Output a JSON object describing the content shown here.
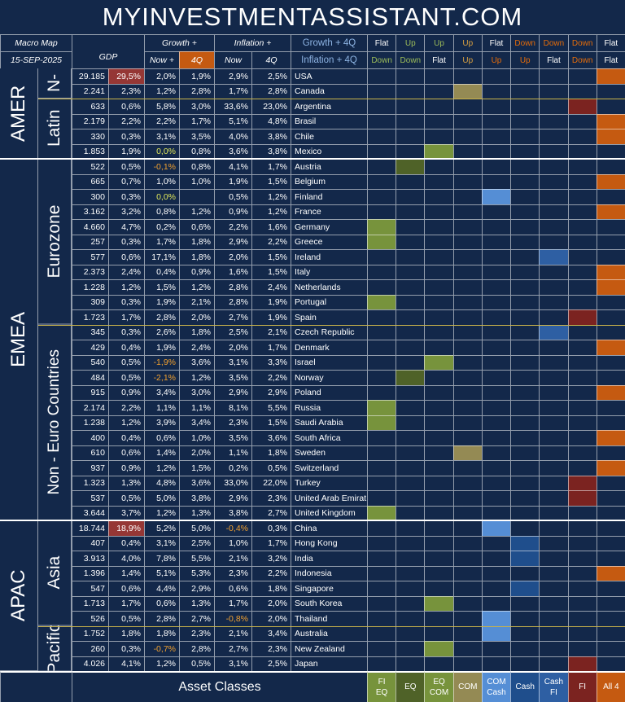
{
  "header": {
    "title": "MYINVESTMENTASSISTANT.COM",
    "macro_map": "Macro Map",
    "date": "15-SEP-2025",
    "gdp": "GDP",
    "growth": "Growth +",
    "growth_now": "Now +",
    "growth_4q": "4Q",
    "inflation": "Inflation +",
    "inflation_now": "Now",
    "inflation_4q": "4Q",
    "country_top": "Growth + 4Q",
    "country_bottom": "Inflation + 4Q"
  },
  "signals": [
    {
      "top": "Flat",
      "bottom": "Down",
      "top_color": "#ffffff",
      "bottom_color": "#9bbb59"
    },
    {
      "top": "Up",
      "bottom": "Down",
      "top_color": "#9bbb59",
      "bottom_color": "#9bbb59"
    },
    {
      "top": "Up",
      "bottom": "Flat",
      "top_color": "#9bbb59",
      "bottom_color": "#ffffff"
    },
    {
      "top": "Up",
      "bottom": "Up",
      "top_color": "#d8a040",
      "bottom_color": "#d8a040"
    },
    {
      "top": "Flat",
      "bottom": "Up",
      "top_color": "#ffffff",
      "bottom_color": "#e46c0a"
    },
    {
      "top": "Down",
      "bottom": "Up",
      "top_color": "#e46c0a",
      "bottom_color": "#e46c0a"
    },
    {
      "top": "Down",
      "bottom": "Flat",
      "top_color": "#e46c0a",
      "bottom_color": "#ffffff"
    },
    {
      "top": "Down",
      "bottom": "Down",
      "top_color": "#e46c0a",
      "bottom_color": "#e46c0a"
    },
    {
      "top": "Flat",
      "bottom": "Flat",
      "top_color": "#ffffff",
      "bottom_color": "#ffffff"
    }
  ],
  "footer": {
    "label": "Asset Classes",
    "classes": [
      {
        "lines": [
          "FI",
          "EQ"
        ],
        "color": "#77933c"
      },
      {
        "lines": [
          "EQ"
        ],
        "color": "#4f6228"
      },
      {
        "lines": [
          "EQ",
          "COM"
        ],
        "color": "#77933c"
      },
      {
        "lines": [
          "COM"
        ],
        "color": "#948a54"
      },
      {
        "lines": [
          "COM",
          "Cash"
        ],
        "color": "#558ed5"
      },
      {
        "lines": [
          "Cash"
        ],
        "color": "#1f4e8c"
      },
      {
        "lines": [
          "Cash",
          "FI"
        ],
        "color": "#2e5fa3"
      },
      {
        "lines": [
          "FI"
        ],
        "color": "#7b2320"
      },
      {
        "lines": [
          "All 4"
        ],
        "color": "#c55a11"
      }
    ]
  },
  "regions": [
    {
      "name": "AMER",
      "subregions": [
        {
          "name": "N-",
          "rows": [
            {
              "gdp": "29.185",
              "share": "29,5%",
              "growth_now": "2,0%",
              "growth_4q": "1,9%",
              "infl_now": "2,9%",
              "infl_4q": "2,5%",
              "country": "USA",
              "signal": 8
            },
            {
              "gdp": "2.241",
              "share": "2,3%",
              "growth_now": "1,2%",
              "growth_4q": "2,8%",
              "infl_now": "1,7%",
              "infl_4q": "2,8%",
              "country": "Canada",
              "signal": 3
            }
          ]
        },
        {
          "name": "Latin",
          "rows": [
            {
              "gdp": "633",
              "share": "0,6%",
              "growth_now": "5,8%",
              "growth_4q": "3,0%",
              "infl_now": "33,6%",
              "infl_4q": "23,0%",
              "country": "Argentina",
              "signal": 7
            },
            {
              "gdp": "2.179",
              "share": "2,2%",
              "growth_now": "2,2%",
              "growth_4q": "1,7%",
              "infl_now": "5,1%",
              "infl_4q": "4,8%",
              "country": "Brasil",
              "signal": 8
            },
            {
              "gdp": "330",
              "share": "0,3%",
              "growth_now": "3,1%",
              "growth_4q": "3,5%",
              "infl_now": "4,0%",
              "infl_4q": "3,8%",
              "country": "Chile",
              "signal": 8
            },
            {
              "gdp": "1.853",
              "share": "1,9%",
              "growth_now": "0,0%",
              "growth_4q": "0,8%",
              "infl_now": "3,6%",
              "infl_4q": "3,8%",
              "country": "Mexico",
              "signal": 2
            }
          ]
        }
      ]
    },
    {
      "name": "EMEA",
      "subregions": [
        {
          "name": "Eurozone",
          "rows": [
            {
              "gdp": "522",
              "share": "0,5%",
              "growth_now": "-0,1%",
              "growth_4q": "0,8%",
              "infl_now": "4,1%",
              "infl_4q": "1,7%",
              "country": "Austria",
              "signal": 1
            },
            {
              "gdp": "665",
              "share": "0,7%",
              "growth_now": "1,0%",
              "growth_4q": "1,0%",
              "infl_now": "1,9%",
              "infl_4q": "1,5%",
              "country": "Belgium",
              "signal": 8
            },
            {
              "gdp": "300",
              "share": "0,3%",
              "growth_now": "0,0%",
              "growth_4q": null,
              "infl_now": "0,5%",
              "infl_4q": "1,2%",
              "country": "Finland",
              "signal": 4
            },
            {
              "gdp": "3.162",
              "share": "3,2%",
              "growth_now": "0,8%",
              "growth_4q": "1,2%",
              "infl_now": "0,9%",
              "infl_4q": "1,2%",
              "country": "France",
              "signal": 8
            },
            {
              "gdp": "4.660",
              "share": "4,7%",
              "growth_now": "0,2%",
              "growth_4q": "0,6%",
              "infl_now": "2,2%",
              "infl_4q": "1,6%",
              "country": "Germany",
              "signal": 0
            },
            {
              "gdp": "257",
              "share": "0,3%",
              "growth_now": "1,7%",
              "growth_4q": "1,8%",
              "infl_now": "2,9%",
              "infl_4q": "2,2%",
              "country": "Greece",
              "signal": 0
            },
            {
              "gdp": "577",
              "share": "0,6%",
              "growth_now": "17,1%",
              "growth_4q": "1,8%",
              "infl_now": "2,0%",
              "infl_4q": "1,5%",
              "country": "Ireland",
              "signal": 6
            },
            {
              "gdp": "2.373",
              "share": "2,4%",
              "growth_now": "0,4%",
              "growth_4q": "0,9%",
              "infl_now": "1,6%",
              "infl_4q": "1,5%",
              "country": "Italy",
              "signal": 8
            },
            {
              "gdp": "1.228",
              "share": "1,2%",
              "growth_now": "1,5%",
              "growth_4q": "1,2%",
              "infl_now": "2,8%",
              "infl_4q": "2,4%",
              "country": "Netherlands",
              "signal": 8
            },
            {
              "gdp": "309",
              "share": "0,3%",
              "growth_now": "1,9%",
              "growth_4q": "2,1%",
              "infl_now": "2,8%",
              "infl_4q": "1,9%",
              "country": "Portugal",
              "signal": 0
            },
            {
              "gdp": "1.723",
              "share": "1,7%",
              "growth_now": "2,8%",
              "growth_4q": "2,0%",
              "infl_now": "2,7%",
              "infl_4q": "1,9%",
              "country": "Spain",
              "signal": 7
            }
          ]
        },
        {
          "name": "Non - Euro Countries",
          "rows": [
            {
              "gdp": "345",
              "share": "0,3%",
              "growth_now": "2,6%",
              "growth_4q": "1,8%",
              "infl_now": "2,5%",
              "infl_4q": "2,1%",
              "country": "Czech Republic",
              "signal": 6
            },
            {
              "gdp": "429",
              "share": "0,4%",
              "growth_now": "1,9%",
              "growth_4q": "2,4%",
              "infl_now": "2,0%",
              "infl_4q": "1,7%",
              "country": "Denmark",
              "signal": 8
            },
            {
              "gdp": "540",
              "share": "0,5%",
              "growth_now": "-1,9%",
              "growth_4q": "3,6%",
              "infl_now": "3,1%",
              "infl_4q": "3,3%",
              "country": "Israel",
              "signal": 2
            },
            {
              "gdp": "484",
              "share": "0,5%",
              "growth_now": "-2,1%",
              "growth_4q": "1,2%",
              "infl_now": "3,5%",
              "infl_4q": "2,2%",
              "country": "Norway",
              "signal": 1
            },
            {
              "gdp": "915",
              "share": "0,9%",
              "growth_now": "3,4%",
              "growth_4q": "3,0%",
              "infl_now": "2,9%",
              "infl_4q": "2,9%",
              "country": "Poland",
              "signal": 8
            },
            {
              "gdp": "2.174",
              "share": "2,2%",
              "growth_now": "1,1%",
              "growth_4q": "1,1%",
              "infl_now": "8,1%",
              "infl_4q": "5,5%",
              "country": "Russia",
              "signal": 0
            },
            {
              "gdp": "1.238",
              "share": "1,2%",
              "growth_now": "3,9%",
              "growth_4q": "3,4%",
              "infl_now": "2,3%",
              "infl_4q": "1,5%",
              "country": "Saudi Arabia",
              "signal": 0
            },
            {
              "gdp": "400",
              "share": "0,4%",
              "growth_now": "0,6%",
              "growth_4q": "1,0%",
              "infl_now": "3,5%",
              "infl_4q": "3,6%",
              "country": "South Africa",
              "signal": 8
            },
            {
              "gdp": "610",
              "share": "0,6%",
              "growth_now": "1,4%",
              "growth_4q": "2,0%",
              "infl_now": "1,1%",
              "infl_4q": "1,8%",
              "country": "Sweden",
              "signal": 3
            },
            {
              "gdp": "937",
              "share": "0,9%",
              "growth_now": "1,2%",
              "growth_4q": "1,5%",
              "infl_now": "0,2%",
              "infl_4q": "0,5%",
              "country": "Switzerland",
              "signal": 8
            },
            {
              "gdp": "1.323",
              "share": "1,3%",
              "growth_now": "4,8%",
              "growth_4q": "3,6%",
              "infl_now": "33,0%",
              "infl_4q": "22,0%",
              "country": "Turkey",
              "signal": 7
            },
            {
              "gdp": "537",
              "share": "0,5%",
              "growth_now": "5,0%",
              "growth_4q": "3,8%",
              "infl_now": "2,9%",
              "infl_4q": "2,3%",
              "country": "United Arab Emirat",
              "signal": 7
            },
            {
              "gdp": "3.644",
              "share": "3,7%",
              "growth_now": "1,2%",
              "growth_4q": "1,3%",
              "infl_now": "3,8%",
              "infl_4q": "2,7%",
              "country": "United Kingdom",
              "signal": 0
            }
          ]
        }
      ]
    },
    {
      "name": "APAC",
      "subregions": [
        {
          "name": "Asia",
          "rows": [
            {
              "gdp": "18.744",
              "share": "18,9%",
              "growth_now": "5,2%",
              "growth_4q": "5,0%",
              "infl_now": "-0,4%",
              "infl_4q": "0,3%",
              "country": "China",
              "signal": 4
            },
            {
              "gdp": "407",
              "share": "0,4%",
              "growth_now": "3,1%",
              "growth_4q": "2,5%",
              "infl_now": "1,0%",
              "infl_4q": "1,7%",
              "country": "Hong Kong",
              "signal": 5
            },
            {
              "gdp": "3.913",
              "share": "4,0%",
              "growth_now": "7,8%",
              "growth_4q": "5,5%",
              "infl_now": "2,1%",
              "infl_4q": "3,2%",
              "country": "India",
              "signal": 5
            },
            {
              "gdp": "1.396",
              "share": "1,4%",
              "growth_now": "5,1%",
              "growth_4q": "5,3%",
              "infl_now": "2,3%",
              "infl_4q": "2,2%",
              "country": "Indonesia",
              "signal": 8
            },
            {
              "gdp": "547",
              "share": "0,6%",
              "growth_now": "4,4%",
              "growth_4q": "2,9%",
              "infl_now": "0,6%",
              "infl_4q": "1,8%",
              "country": "Singapore",
              "signal": 5
            },
            {
              "gdp": "1.713",
              "share": "1,7%",
              "growth_now": "0,6%",
              "growth_4q": "1,3%",
              "infl_now": "1,7%",
              "infl_4q": "2,0%",
              "country": "South Korea",
              "signal": 2
            },
            {
              "gdp": "526",
              "share": "0,5%",
              "growth_now": "2,8%",
              "growth_4q": "2,7%",
              "infl_now": "-0,8%",
              "infl_4q": "2,0%",
              "country": "Thailand",
              "signal": 4
            }
          ]
        },
        {
          "name": "Pacific",
          "rows": [
            {
              "gdp": "1.752",
              "share": "1,8%",
              "growth_now": "1,8%",
              "growth_4q": "2,3%",
              "infl_now": "2,1%",
              "infl_4q": "3,4%",
              "country": "Australia",
              "signal": 4
            },
            {
              "gdp": "260",
              "share": "0,3%",
              "growth_now": "-0,7%",
              "growth_4q": "2,8%",
              "infl_now": "2,7%",
              "infl_4q": "2,3%",
              "country": "New Zealand",
              "signal": 2
            },
            {
              "gdp": "4.026",
              "share": "4,1%",
              "growth_now": "1,2%",
              "growth_4q": "0,5%",
              "infl_now": "3,1%",
              "infl_4q": "2,5%",
              "country": "Japan",
              "signal": 7
            }
          ]
        }
      ]
    }
  ]
}
